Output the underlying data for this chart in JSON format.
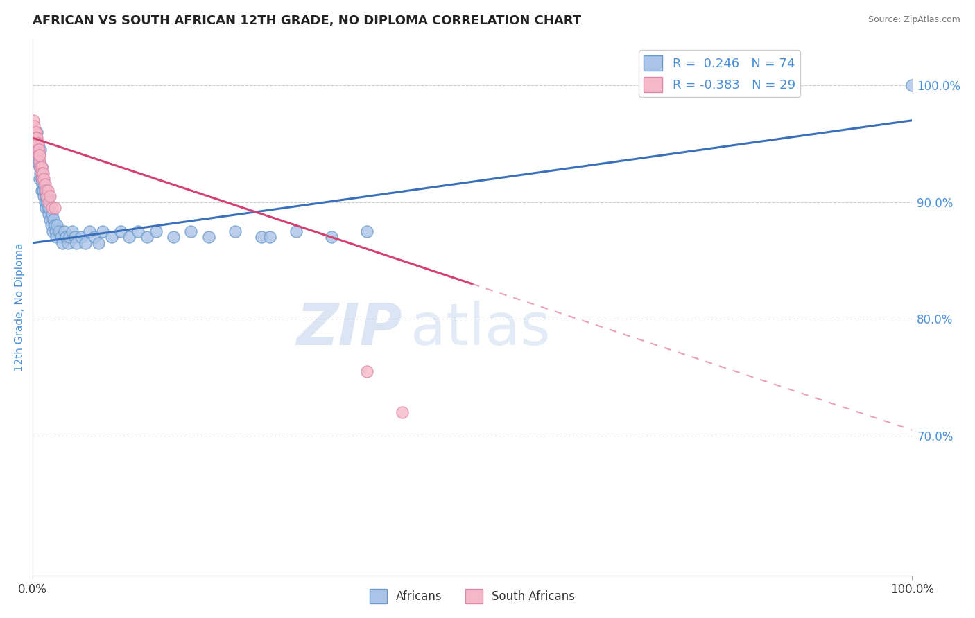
{
  "title": "AFRICAN VS SOUTH AFRICAN 12TH GRADE, NO DIPLOMA CORRELATION CHART",
  "source": "Source: ZipAtlas.com",
  "ylabel": "12th Grade, No Diploma",
  "ylabel_color": "#4a90d9",
  "y_ticks": [
    0.7,
    0.8,
    0.9,
    1.0
  ],
  "y_tick_labels": [
    "70.0%",
    "80.0%",
    "90.0%",
    "100.0%"
  ],
  "legend_africans_R": "0.246",
  "legend_africans_N": "74",
  "legend_southafricans_R": "-0.383",
  "legend_southafricans_N": "29",
  "africans_color": "#aac4e8",
  "africans_edge": "#6699cc",
  "southafricans_color": "#f4b8c8",
  "southafricans_edge": "#dd88aa",
  "trendline_africans_color": "#3a6fba",
  "trendline_southafricans_color": "#d44070",
  "xlim": [
    0.0,
    1.0
  ],
  "ylim": [
    0.58,
    1.04
  ],
  "africans_x": [
    0.002,
    0.003,
    0.004,
    0.004,
    0.005,
    0.005,
    0.006,
    0.006,
    0.007,
    0.007,
    0.008,
    0.008,
    0.009,
    0.009,
    0.01,
    0.01,
    0.01,
    0.011,
    0.011,
    0.012,
    0.012,
    0.013,
    0.013,
    0.014,
    0.014,
    0.015,
    0.015,
    0.016,
    0.016,
    0.017,
    0.017,
    0.018,
    0.019,
    0.02,
    0.021,
    0.022,
    0.023,
    0.024,
    0.025,
    0.026,
    0.027,
    0.028,
    0.03,
    0.032,
    0.034,
    0.036,
    0.038,
    0.04,
    0.042,
    0.045,
    0.048,
    0.05,
    0.055,
    0.06,
    0.065,
    0.07,
    0.075,
    0.08,
    0.09,
    0.1,
    0.11,
    0.12,
    0.13,
    0.14,
    0.16,
    0.18,
    0.2,
    0.23,
    0.26,
    0.3,
    0.34,
    0.38,
    0.27,
    1.0
  ],
  "africans_y": [
    0.95,
    0.945,
    0.955,
    0.94,
    0.96,
    0.935,
    0.945,
    0.95,
    0.94,
    0.935,
    0.92,
    0.93,
    0.945,
    0.925,
    0.93,
    0.92,
    0.91,
    0.925,
    0.915,
    0.91,
    0.92,
    0.905,
    0.915,
    0.9,
    0.91,
    0.905,
    0.895,
    0.9,
    0.91,
    0.895,
    0.905,
    0.89,
    0.895,
    0.885,
    0.88,
    0.89,
    0.875,
    0.885,
    0.88,
    0.875,
    0.87,
    0.88,
    0.875,
    0.87,
    0.865,
    0.875,
    0.87,
    0.865,
    0.87,
    0.875,
    0.87,
    0.865,
    0.87,
    0.865,
    0.875,
    0.87,
    0.865,
    0.875,
    0.87,
    0.875,
    0.87,
    0.875,
    0.87,
    0.875,
    0.87,
    0.875,
    0.87,
    0.875,
    0.87,
    0.875,
    0.87,
    0.875,
    0.87,
    1.0
  ],
  "southafricans_x": [
    0.001,
    0.002,
    0.003,
    0.004,
    0.004,
    0.005,
    0.005,
    0.006,
    0.006,
    0.007,
    0.007,
    0.008,
    0.008,
    0.009,
    0.01,
    0.01,
    0.011,
    0.012,
    0.013,
    0.014,
    0.015,
    0.016,
    0.017,
    0.018,
    0.02,
    0.022,
    0.025,
    0.38,
    0.42
  ],
  "southafricans_y": [
    0.97,
    0.965,
    0.96,
    0.96,
    0.955,
    0.955,
    0.95,
    0.95,
    0.945,
    0.945,
    0.94,
    0.935,
    0.94,
    0.93,
    0.93,
    0.925,
    0.92,
    0.925,
    0.92,
    0.915,
    0.91,
    0.905,
    0.91,
    0.9,
    0.905,
    0.895,
    0.895,
    0.755,
    0.72
  ],
  "trendline_africans_x0": 0.0,
  "trendline_africans_x1": 1.0,
  "trendline_africans_y0": 0.865,
  "trendline_africans_y1": 0.97,
  "trendline_southafricans_x0": 0.0,
  "trendline_southafricans_x1": 0.5,
  "trendline_southafricans_y0": 0.955,
  "trendline_southafricans_y1": 0.83,
  "trendline_southafricans_dash_x0": 0.5,
  "trendline_southafricans_dash_x1": 1.0,
  "trendline_southafricans_dash_y0": 0.83,
  "trendline_southafricans_dash_y1": 0.705
}
